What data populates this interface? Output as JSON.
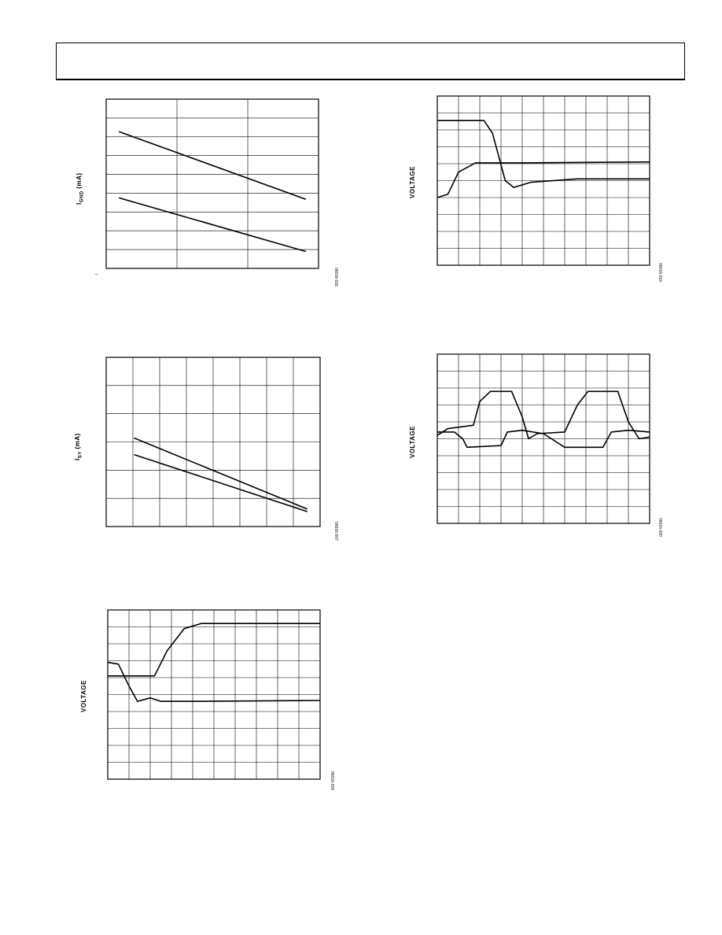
{
  "page": {
    "header": ""
  },
  "figures": [
    {
      "id": "fig-ignd",
      "ylabel_main": "I",
      "ylabel_sub": "GND",
      "ylabel_unit": " (mA)",
      "fig_code": "06016-016",
      "tick_mark": "–",
      "chart_data": {
        "type": "line",
        "grid_cols": 3,
        "grid_rows": 9,
        "series": [
          {
            "values": [
              [
                0.06,
                3.35
              ],
              [
                0.94,
                0.95
              ]
            ]
          },
          {
            "values": [
              [
                0.06,
                1.0
              ],
              [
                0.94,
                -0.9
              ]
            ]
          }
        ]
      }
    },
    {
      "id": "fig-isy",
      "ylabel_main": "I",
      "ylabel_sub": "SY",
      "ylabel_unit": " (mA)",
      "fig_code": "06016-007",
      "chart_data": {
        "type": "line",
        "grid_cols": 8,
        "grid_rows": 6,
        "series": [
          {
            "values": [
              [
                0.13,
                3.14
              ],
              [
                0.94,
                0.62
              ]
            ]
          },
          {
            "values": [
              [
                0.13,
                2.55
              ],
              [
                0.94,
                0.53
              ]
            ]
          }
        ]
      }
    },
    {
      "id": "fig-step-up",
      "ylabel": "VOLTAGE",
      "fig_code": "06016-018",
      "chart_data": {
        "type": "line",
        "grid_cols": 10,
        "grid_rows": 10,
        "series": [
          {
            "values": [
              [
                0,
                6.1
              ],
              [
                0.1,
                6.1
              ],
              [
                0.22,
                6.1
              ],
              [
                0.28,
                7.6
              ],
              [
                0.36,
                8.9
              ],
              [
                0.44,
                9.2
              ],
              [
                1.0,
                9.2
              ]
            ]
          },
          {
            "values": [
              [
                0,
                6.9
              ],
              [
                0.05,
                6.8
              ],
              [
                0.1,
                5.5
              ],
              [
                0.14,
                4.6
              ],
              [
                0.2,
                4.8
              ],
              [
                0.25,
                4.6
              ],
              [
                0.4,
                4.6
              ],
              [
                1.0,
                4.65
              ]
            ]
          }
        ]
      }
    },
    {
      "id": "fig-step-down",
      "ylabel": "VOLTAGE",
      "fig_code": "06016-019",
      "chart_data": {
        "type": "line",
        "grid_cols": 10,
        "grid_rows": 10,
        "series": [
          {
            "values": [
              [
                0,
                8.55
              ],
              [
                0.22,
                8.55
              ],
              [
                0.26,
                7.8
              ],
              [
                0.32,
                5.0
              ],
              [
                0.36,
                4.6
              ],
              [
                0.44,
                4.9
              ],
              [
                0.66,
                5.1
              ],
              [
                1.0,
                5.1
              ]
            ]
          },
          {
            "values": [
              [
                0,
                4.0
              ],
              [
                0.05,
                4.2
              ],
              [
                0.1,
                5.5
              ],
              [
                0.18,
                6.05
              ],
              [
                0.4,
                6.05
              ],
              [
                1.0,
                6.1
              ]
            ]
          }
        ]
      }
    },
    {
      "id": "fig-square",
      "ylabel": "VOLTAGE",
      "fig_code": "06016-020",
      "chart_data": {
        "type": "line",
        "grid_cols": 10,
        "grid_rows": 10,
        "series": [
          {
            "values": [
              [
                0,
                5.2
              ],
              [
                0.05,
                5.6
              ],
              [
                0.17,
                5.8
              ],
              [
                0.2,
                7.2
              ],
              [
                0.25,
                7.8
              ],
              [
                0.35,
                7.8
              ],
              [
                0.4,
                6.3
              ],
              [
                0.43,
                5.0
              ],
              [
                0.47,
                5.3
              ],
              [
                0.6,
                5.4
              ],
              [
                0.66,
                7.0
              ],
              [
                0.71,
                7.8
              ],
              [
                0.85,
                7.8
              ],
              [
                0.9,
                6.0
              ],
              [
                0.95,
                5.0
              ],
              [
                1.0,
                5.1
              ]
            ]
          },
          {
            "values": [
              [
                0,
                5.4
              ],
              [
                0.08,
                5.4
              ],
              [
                0.12,
                5.0
              ],
              [
                0.14,
                4.5
              ],
              [
                0.3,
                4.6
              ],
              [
                0.33,
                5.4
              ],
              [
                0.4,
                5.5
              ],
              [
                0.5,
                5.3
              ],
              [
                0.6,
                4.5
              ],
              [
                0.78,
                4.5
              ],
              [
                0.82,
                5.4
              ],
              [
                0.9,
                5.5
              ],
              [
                1.0,
                5.4
              ]
            ]
          }
        ]
      }
    }
  ]
}
